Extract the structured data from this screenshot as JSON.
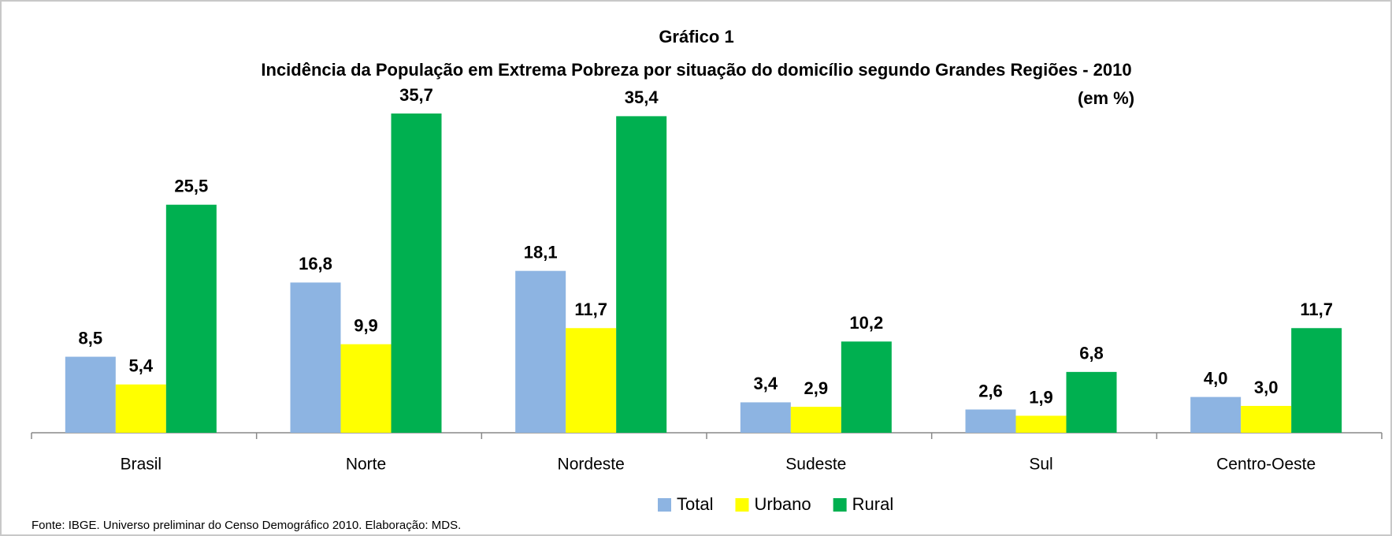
{
  "chart_data": {
    "type": "bar",
    "title": "Gráfico 1",
    "subtitle": "Incidência da População em Extrema Pobreza por situação do domicílio segundo Grandes Regiões - 2010",
    "unit_note": "(em %)",
    "source": "Fonte: IBGE. Universo preliminar do Censo Demográfico 2010. Elaboração: MDS.",
    "categories": [
      "Brasil",
      "Norte",
      "Nordeste",
      "Sudeste",
      "Sul",
      "Centro-Oeste"
    ],
    "series": [
      {
        "name": "Total",
        "color": "#8db4e2",
        "values": [
          8.5,
          16.8,
          18.1,
          3.4,
          2.6,
          4.0
        ],
        "value_labels": [
          "8,5",
          "16,8",
          "18,1",
          "3,4",
          "2,6",
          "4,0"
        ]
      },
      {
        "name": "Urbano",
        "color": "#ffff00",
        "values": [
          5.4,
          9.9,
          11.7,
          2.9,
          1.9,
          3.0
        ],
        "value_labels": [
          "5,4",
          "9,9",
          "11,7",
          "2,9",
          "1,9",
          "3,0"
        ]
      },
      {
        "name": "Rural",
        "color": "#00b050",
        "values": [
          25.5,
          35.7,
          35.4,
          10.2,
          6.8,
          11.7
        ],
        "value_labels": [
          "25,5",
          "35,7",
          "35,4",
          "10,2",
          "6,8",
          "11,7"
        ]
      }
    ]
  }
}
